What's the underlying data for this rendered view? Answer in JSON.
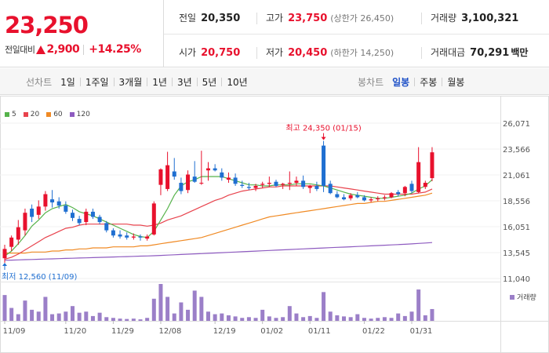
{
  "quote": {
    "price": "23,250",
    "change_label": "전일대비",
    "change_value": "2,900",
    "change_percent": "+14.25%",
    "prev_close_label": "전일",
    "prev_close": "20,350",
    "high_label": "고가",
    "high": "23,750",
    "upper_limit_label": "(상한가 26,450)",
    "volume_label": "거래량",
    "volume": "3,100,321",
    "open_label": "시가",
    "open": "20,750",
    "low_label": "저가",
    "low": "20,450",
    "lower_limit_label": "(하한가 14,250)",
    "trade_value_label": "거래대금",
    "trade_value": "70,291",
    "trade_value_unit": "백만",
    "up_color": "#e8112d"
  },
  "period_bar": {
    "line_label": "선차트",
    "line_options": [
      "1일",
      "1주일",
      "3개월",
      "1년",
      "3년",
      "5년",
      "10년"
    ],
    "candle_label": "봉차트",
    "candle_options": [
      "일봉",
      "주봉",
      "월봉"
    ],
    "active_candle": "일봉"
  },
  "chart_data": {
    "type": "candlestick",
    "y_ticks": [
      "26,071",
      "23,566",
      "21,061",
      "18,556",
      "16,051",
      "13,545",
      "11,040"
    ],
    "ylim": [
      11040,
      26071
    ],
    "x_ticks": [
      {
        "label": "11/09",
        "index": 0
      },
      {
        "label": "11/20",
        "index": 9
      },
      {
        "label": "11/29",
        "index": 16
      },
      {
        "label": "12/08",
        "index": 23
      },
      {
        "label": "12/19",
        "index": 31
      },
      {
        "label": "01/02",
        "index": 38
      },
      {
        "label": "01/11",
        "index": 45
      },
      {
        "label": "01/22",
        "index": 53
      },
      {
        "label": "01/31",
        "index": 60
      }
    ],
    "legend": [
      {
        "name": "5",
        "color": "#56b34b"
      },
      {
        "name": "20",
        "color": "#e8434d"
      },
      {
        "name": "60",
        "color": "#f08a24"
      },
      {
        "name": "120",
        "color": "#8e5bc0"
      }
    ],
    "up_color": "#e8112d",
    "down_color": "#1f6fd1",
    "high_annotation": "최고 24,350 (01/15)",
    "high_value": 24350,
    "high_index": 47,
    "low_annotation": "최저 12,560 (11/09)",
    "low_value": 12560,
    "low_index": 0,
    "volume_label": "거래량",
    "volume_color": "#9b7fc8",
    "candles": [
      [
        13000,
        14300,
        12560,
        13900
      ],
      [
        14100,
        15200,
        13700,
        15000
      ],
      [
        14800,
        16700,
        14300,
        16000
      ],
      [
        15700,
        17800,
        15200,
        17400
      ],
      [
        17800,
        18200,
        16500,
        17000
      ],
      [
        17200,
        18600,
        16800,
        18000
      ],
      [
        18000,
        19500,
        17600,
        19200
      ],
      [
        18700,
        19600,
        17900,
        18400
      ],
      [
        18500,
        18900,
        17800,
        18100
      ],
      [
        18100,
        18500,
        17300,
        17500
      ],
      [
        17400,
        17700,
        16600,
        16900
      ],
      [
        16800,
        17100,
        16200,
        16400
      ],
      [
        16500,
        17800,
        16200,
        17500
      ],
      [
        17500,
        17800,
        16800,
        17000
      ],
      [
        17000,
        17200,
        16300,
        16500
      ],
      [
        16400,
        16600,
        15500,
        15700
      ],
      [
        15700,
        15900,
        15000,
        15200
      ],
      [
        15300,
        15700,
        14900,
        15100
      ],
      [
        15200,
        15500,
        14800,
        15000
      ],
      [
        15000,
        15400,
        14800,
        15100
      ],
      [
        15100,
        15300,
        14700,
        15000
      ],
      [
        14900,
        15300,
        14700,
        15100
      ],
      [
        15300,
        18500,
        15200,
        18300
      ],
      [
        20100,
        21700,
        19100,
        21600
      ],
      [
        19700,
        23300,
        19500,
        22000
      ],
      [
        21400,
        22700,
        20600,
        20900
      ],
      [
        20300,
        20800,
        19200,
        19500
      ],
      [
        19600,
        21500,
        19300,
        21100
      ],
      [
        20900,
        22400,
        20300,
        20400
      ],
      [
        20300,
        23400,
        20100,
        20300
      ],
      [
        21500,
        22300,
        20500,
        21700
      ],
      [
        21700,
        22100,
        21400,
        21500
      ],
      [
        21300,
        21700,
        20500,
        20800
      ],
      [
        20600,
        21300,
        20300,
        20800
      ],
      [
        20800,
        21200,
        20000,
        20200
      ],
      [
        20100,
        20500,
        19800,
        20000
      ],
      [
        19900,
        20300,
        19600,
        19800
      ],
      [
        19800,
        20200,
        19500,
        20000
      ],
      [
        20100,
        20400,
        19800,
        20200
      ],
      [
        20200,
        20900,
        19900,
        20300
      ],
      [
        20400,
        20600,
        19900,
        20000
      ],
      [
        20100,
        20300,
        19700,
        20200
      ],
      [
        20200,
        21400,
        19600,
        20300
      ],
      [
        20300,
        20900,
        20000,
        20500
      ],
      [
        20500,
        21000,
        19700,
        19900
      ],
      [
        19800,
        20100,
        19300,
        20000
      ],
      [
        20000,
        20400,
        19500,
        19700
      ],
      [
        23900,
        24350,
        19400,
        20000
      ],
      [
        20200,
        20500,
        19200,
        19300
      ],
      [
        19200,
        19500,
        18800,
        18900
      ],
      [
        18900,
        19200,
        18600,
        18700
      ],
      [
        18800,
        19300,
        18600,
        19100
      ],
      [
        19100,
        19400,
        18800,
        18900
      ],
      [
        18900,
        19100,
        18500,
        18600
      ],
      [
        18600,
        18900,
        18400,
        18700
      ],
      [
        18700,
        19000,
        18500,
        18800
      ],
      [
        18800,
        19100,
        18600,
        18900
      ],
      [
        18900,
        19400,
        18800,
        19300
      ],
      [
        19400,
        19600,
        19000,
        19200
      ],
      [
        19300,
        20000,
        19000,
        19900
      ],
      [
        20200,
        20500,
        19300,
        19500
      ],
      [
        19400,
        23750,
        19300,
        22300
      ],
      [
        19900,
        20500,
        19700,
        20300
      ],
      [
        20750,
        23750,
        20450,
        23250
      ]
    ],
    "ma5": [
      13200,
      13700,
      14400,
      15200,
      16100,
      16700,
      17400,
      17800,
      18000,
      18200,
      17900,
      17500,
      17300,
      17100,
      16800,
      16500,
      16200,
      15900,
      15600,
      15300,
      15100,
      15000,
      15600,
      16700,
      17800,
      19100,
      20000,
      20400,
      20600,
      20900,
      20900,
      20900,
      20900,
      20700,
      20500,
      20300,
      20100,
      20100,
      20000,
      20000,
      20100,
      20100,
      20100,
      20200,
      20200,
      20200,
      20100,
      20000,
      19800,
      19600,
      19400,
      19200,
      19100,
      19000,
      18900,
      18800,
      18800,
      18900,
      19000,
      19100,
      19300,
      19700,
      20000,
      20600
    ],
    "ma20": [
      12900,
      13100,
      13400,
      13800,
      14200,
      14600,
      15000,
      15300,
      15600,
      15900,
      16000,
      16200,
      16300,
      16300,
      16300,
      16300,
      16300,
      16300,
      16300,
      16200,
      16200,
      16100,
      16200,
      16400,
      16700,
      16900,
      17100,
      17400,
      17700,
      18000,
      18300,
      18600,
      18800,
      19100,
      19300,
      19500,
      19600,
      19700,
      19800,
      19900,
      19900,
      20000,
      20000,
      20000,
      20000,
      20000,
      20000,
      20000,
      20000,
      19900,
      19800,
      19700,
      19600,
      19500,
      19400,
      19300,
      19200,
      19200,
      19200,
      19200,
      19200,
      19300,
      19400,
      19700
    ],
    "ma60": [
      13500,
      13500,
      13500,
      13500,
      13600,
      13600,
      13600,
      13700,
      13700,
      13800,
      13800,
      13900,
      13900,
      14000,
      14000,
      14000,
      14100,
      14100,
      14100,
      14100,
      14200,
      14200,
      14300,
      14400,
      14500,
      14600,
      14700,
      14800,
      14900,
      15000,
      15200,
      15400,
      15600,
      15800,
      16000,
      16200,
      16400,
      16600,
      16800,
      17000,
      17100,
      17200,
      17300,
      17400,
      17500,
      17600,
      17700,
      17800,
      17900,
      18000,
      18100,
      18200,
      18300,
      18300,
      18400,
      18500,
      18500,
      18600,
      18700,
      18800,
      18900,
      19000,
      19100,
      19300
    ],
    "ma120": [
      12800,
      12820,
      12840,
      12860,
      12880,
      12900,
      12920,
      12940,
      12960,
      12980,
      13000,
      13020,
      13040,
      13060,
      13080,
      13100,
      13120,
      13140,
      13160,
      13180,
      13200,
      13220,
      13240,
      13270,
      13300,
      13330,
      13360,
      13390,
      13420,
      13450,
      13480,
      13510,
      13540,
      13570,
      13600,
      13630,
      13660,
      13690,
      13720,
      13750,
      13780,
      13810,
      13840,
      13870,
      13900,
      13930,
      13960,
      13990,
      14020,
      14050,
      14080,
      14110,
      14140,
      14170,
      14200,
      14230,
      14260,
      14290,
      14320,
      14350,
      14390,
      14430,
      14470,
      14520
    ],
    "volume_max": 1000,
    "volume": [
      700,
      350,
      180,
      550,
      300,
      250,
      650,
      180,
      200,
      250,
      400,
      220,
      250,
      130,
      220,
      100,
      80,
      60,
      50,
      60,
      40,
      80,
      600,
      1000,
      650,
      200,
      500,
      300,
      820,
      650,
      250,
      180,
      200,
      150,
      120,
      80,
      100,
      80,
      300,
      120,
      80,
      100,
      400,
      200,
      100,
      130,
      80,
      780,
      250,
      150,
      120,
      100,
      180,
      80,
      60,
      80,
      100,
      80,
      200,
      130,
      250,
      850,
      150,
      320
    ]
  }
}
